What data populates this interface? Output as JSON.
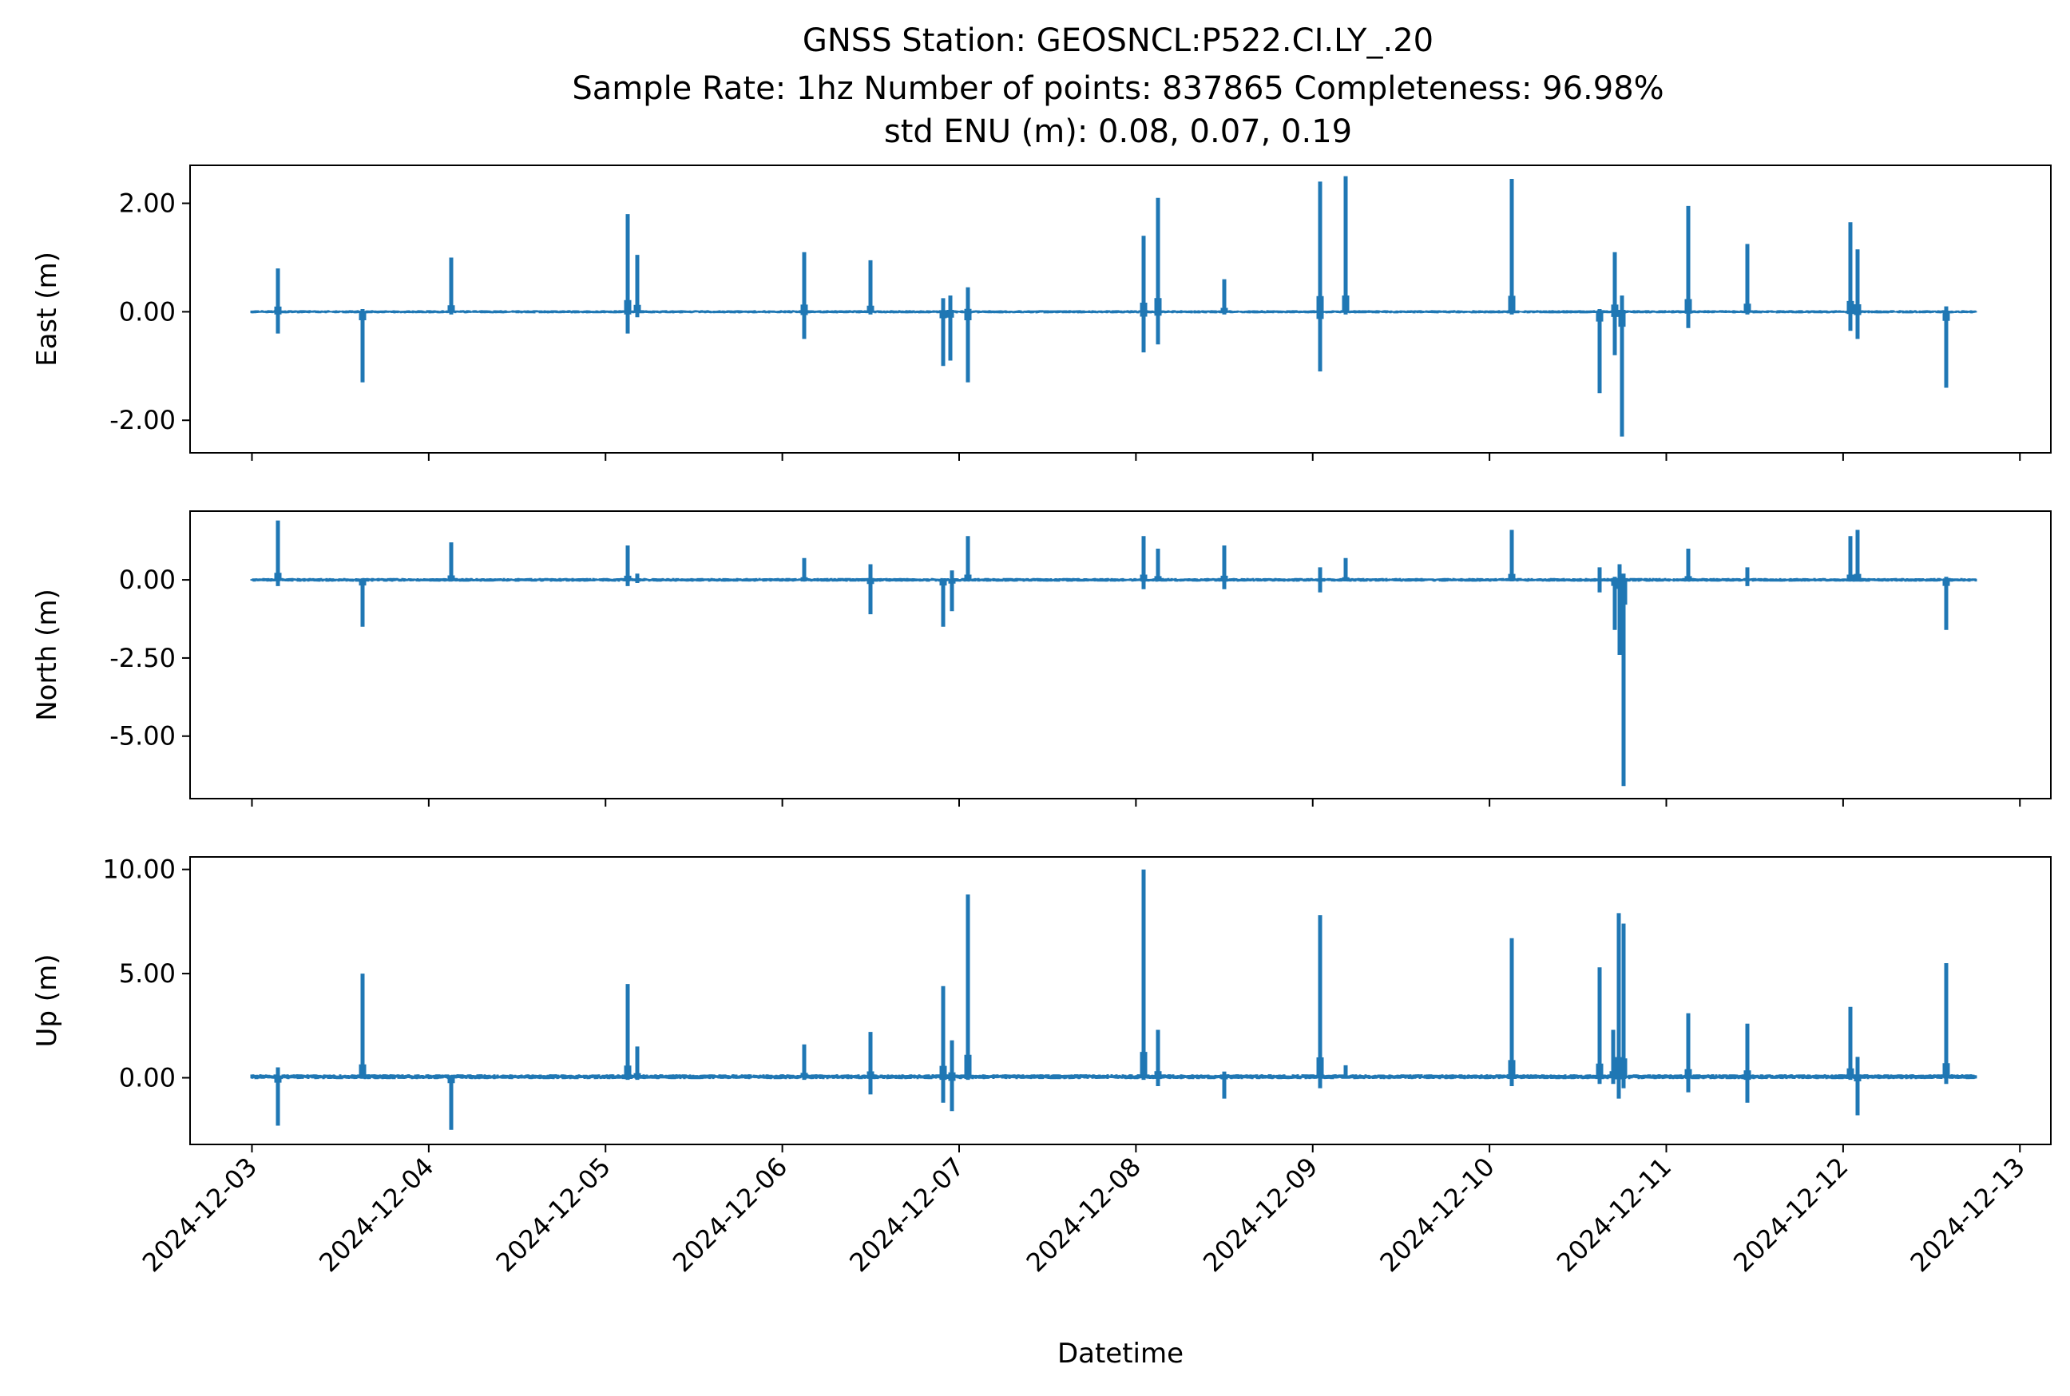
{
  "figure": {
    "title_lines": [
      "GNSS Station: GEOSNCL:P522.CI.LY_.20",
      "Sample Rate: 1hz   Number of points: 837865    Completeness:  96.98%",
      "std ENU (m):  0.08, 0.07, 0.19"
    ],
    "line_color": "#1f77b4"
  },
  "chart_data": [
    {
      "type": "line",
      "title": "",
      "ylabel": "East (m)",
      "xlabel": "",
      "xlim": [
        "2024-12-02T15:36",
        "2024-12-13T04:12"
      ],
      "ylim": [
        -2.6,
        2.7
      ],
      "yticks": [
        {
          "value": -2,
          "label": "-2.00"
        },
        {
          "value": 0,
          "label": "0.00"
        },
        {
          "value": 2,
          "label": "2.00"
        }
      ],
      "xticks": [],
      "grid": false,
      "series_range": [
        "2024-12-03T00:00",
        "2024-12-12T18:00"
      ],
      "baseline": 0,
      "noise": 0.02,
      "spikes": [
        {
          "t": "2024-12-03T03:30",
          "min": -0.4,
          "max": 0.8
        },
        {
          "t": "2024-12-03T15:00",
          "min": -1.3,
          "max": 0.05
        },
        {
          "t": "2024-12-04T03:00",
          "min": -0.05,
          "max": 1.0
        },
        {
          "t": "2024-12-05T03:00",
          "min": -0.4,
          "max": 1.8
        },
        {
          "t": "2024-12-05T04:20",
          "min": -0.1,
          "max": 1.05
        },
        {
          "t": "2024-12-06T03:00",
          "min": -0.5,
          "max": 1.1
        },
        {
          "t": "2024-12-06T12:00",
          "min": -0.05,
          "max": 0.95
        },
        {
          "t": "2024-12-06T21:50",
          "min": -1.0,
          "max": 0.25
        },
        {
          "t": "2024-12-06T22:50",
          "min": -0.9,
          "max": 0.3
        },
        {
          "t": "2024-12-07T01:10",
          "min": -1.3,
          "max": 0.45
        },
        {
          "t": "2024-12-08T01:00",
          "min": -0.75,
          "max": 1.4
        },
        {
          "t": "2024-12-08T03:00",
          "min": -0.6,
          "max": 2.1
        },
        {
          "t": "2024-12-08T12:00",
          "min": -0.05,
          "max": 0.6
        },
        {
          "t": "2024-12-09T01:00",
          "min": -1.1,
          "max": 2.4
        },
        {
          "t": "2024-12-09T04:30",
          "min": -0.05,
          "max": 2.5
        },
        {
          "t": "2024-12-10T03:00",
          "min": -0.05,
          "max": 2.45
        },
        {
          "t": "2024-12-10T15:00",
          "min": -1.5,
          "max": 0.05
        },
        {
          "t": "2024-12-10T17:00",
          "min": -0.8,
          "max": 1.1
        },
        {
          "t": "2024-12-10T18:00",
          "min": -2.3,
          "max": 0.3
        },
        {
          "t": "2024-12-11T03:00",
          "min": -0.3,
          "max": 1.95
        },
        {
          "t": "2024-12-11T11:00",
          "min": -0.05,
          "max": 1.25
        },
        {
          "t": "2024-12-12T01:00",
          "min": -0.35,
          "max": 1.65
        },
        {
          "t": "2024-12-12T02:00",
          "min": -0.5,
          "max": 1.15
        },
        {
          "t": "2024-12-12T14:00",
          "min": -1.4,
          "max": 0.1
        }
      ]
    },
    {
      "type": "line",
      "title": "",
      "ylabel": "North (m)",
      "xlabel": "",
      "xlim": [
        "2024-12-02T15:36",
        "2024-12-13T04:12"
      ],
      "ylim": [
        -7.0,
        2.2
      ],
      "yticks": [
        {
          "value": -5,
          "label": "-5.00"
        },
        {
          "value": -2.5,
          "label": "-2.50"
        },
        {
          "value": 0,
          "label": "0.00"
        }
      ],
      "xticks": [],
      "grid": false,
      "series_range": [
        "2024-12-03T00:00",
        "2024-12-12T18:00"
      ],
      "baseline": 0,
      "noise": 0.04,
      "spikes": [
        {
          "t": "2024-12-03T03:30",
          "min": -0.2,
          "max": 1.9
        },
        {
          "t": "2024-12-03T15:00",
          "min": -1.5,
          "max": 0.05
        },
        {
          "t": "2024-12-04T03:00",
          "min": -0.05,
          "max": 1.2
        },
        {
          "t": "2024-12-05T03:00",
          "min": -0.2,
          "max": 1.1
        },
        {
          "t": "2024-12-05T04:20",
          "min": -0.1,
          "max": 0.2
        },
        {
          "t": "2024-12-06T03:00",
          "min": -0.05,
          "max": 0.7
        },
        {
          "t": "2024-12-06T12:00",
          "min": -1.1,
          "max": 0.5
        },
        {
          "t": "2024-12-06T21:50",
          "min": -1.5,
          "max": 0.05
        },
        {
          "t": "2024-12-06T23:00",
          "min": -1.0,
          "max": 0.3
        },
        {
          "t": "2024-12-07T01:10",
          "min": -0.05,
          "max": 1.4
        },
        {
          "t": "2024-12-08T01:00",
          "min": -0.3,
          "max": 1.4
        },
        {
          "t": "2024-12-08T03:00",
          "min": -0.05,
          "max": 1.0
        },
        {
          "t": "2024-12-08T12:00",
          "min": -0.3,
          "max": 1.1
        },
        {
          "t": "2024-12-09T01:00",
          "min": -0.4,
          "max": 0.4
        },
        {
          "t": "2024-12-09T04:30",
          "min": -0.05,
          "max": 0.7
        },
        {
          "t": "2024-12-10T03:00",
          "min": -0.05,
          "max": 1.6
        },
        {
          "t": "2024-12-10T15:00",
          "min": -0.4,
          "max": 0.4
        },
        {
          "t": "2024-12-10T17:00",
          "min": -1.6,
          "max": 0.1
        },
        {
          "t": "2024-12-10T17:40",
          "min": -2.4,
          "max": 0.5
        },
        {
          "t": "2024-12-10T18:10",
          "min": -6.6,
          "max": 0.2
        },
        {
          "t": "2024-12-11T03:00",
          "min": -0.05,
          "max": 1.0
        },
        {
          "t": "2024-12-11T11:00",
          "min": -0.2,
          "max": 0.4
        },
        {
          "t": "2024-12-12T01:00",
          "min": -0.05,
          "max": 1.4
        },
        {
          "t": "2024-12-12T02:00",
          "min": -0.05,
          "max": 1.6
        },
        {
          "t": "2024-12-12T14:00",
          "min": -1.6,
          "max": 0.1
        }
      ]
    },
    {
      "type": "line",
      "title": "",
      "ylabel": "Up (m)",
      "xlabel": "Datetime",
      "xlim": [
        "2024-12-02T15:36",
        "2024-12-13T04:12"
      ],
      "ylim": [
        -3.2,
        10.6
      ],
      "yticks": [
        {
          "value": 0,
          "label": "0.00"
        },
        {
          "value": 5,
          "label": "5.00"
        },
        {
          "value": 10,
          "label": "10.00"
        }
      ],
      "xticks": [
        "2024-12-03",
        "2024-12-04",
        "2024-12-05",
        "2024-12-06",
        "2024-12-07",
        "2024-12-08",
        "2024-12-09",
        "2024-12-10",
        "2024-12-11",
        "2024-12-12",
        "2024-12-13"
      ],
      "grid": false,
      "series_range": [
        "2024-12-03T00:00",
        "2024-12-12T18:00"
      ],
      "baseline": 0.05,
      "noise": 0.08,
      "spikes": [
        {
          "t": "2024-12-03T03:30",
          "min": -2.3,
          "max": 0.5
        },
        {
          "t": "2024-12-03T15:00",
          "min": -0.05,
          "max": 5.0
        },
        {
          "t": "2024-12-04T03:00",
          "min": -2.5,
          "max": 0.05
        },
        {
          "t": "2024-12-05T03:00",
          "min": -0.1,
          "max": 4.5
        },
        {
          "t": "2024-12-05T04:20",
          "min": -0.1,
          "max": 1.5
        },
        {
          "t": "2024-12-06T03:00",
          "min": -0.1,
          "max": 1.6
        },
        {
          "t": "2024-12-06T12:00",
          "min": -0.8,
          "max": 2.2
        },
        {
          "t": "2024-12-06T21:50",
          "min": -1.2,
          "max": 4.4
        },
        {
          "t": "2024-12-06T23:00",
          "min": -1.6,
          "max": 1.8
        },
        {
          "t": "2024-12-07T01:10",
          "min": -0.1,
          "max": 8.8
        },
        {
          "t": "2024-12-08T01:00",
          "min": -0.1,
          "max": 10.0
        },
        {
          "t": "2024-12-08T03:00",
          "min": -0.4,
          "max": 2.3
        },
        {
          "t": "2024-12-08T12:00",
          "min": -1.0,
          "max": 0.3
        },
        {
          "t": "2024-12-09T01:00",
          "min": -0.5,
          "max": 7.8
        },
        {
          "t": "2024-12-09T04:30",
          "min": -0.05,
          "max": 0.6
        },
        {
          "t": "2024-12-10T03:00",
          "min": -0.4,
          "max": 6.7
        },
        {
          "t": "2024-12-10T15:00",
          "min": -0.3,
          "max": 5.3
        },
        {
          "t": "2024-12-10T16:50",
          "min": -0.3,
          "max": 2.3
        },
        {
          "t": "2024-12-10T17:30",
          "min": -1.0,
          "max": 7.9
        },
        {
          "t": "2024-12-10T18:10",
          "min": -0.5,
          "max": 7.4
        },
        {
          "t": "2024-12-11T03:00",
          "min": -0.7,
          "max": 3.1
        },
        {
          "t": "2024-12-11T11:00",
          "min": -1.2,
          "max": 2.6
        },
        {
          "t": "2024-12-12T01:00",
          "min": -0.1,
          "max": 3.4
        },
        {
          "t": "2024-12-12T02:00",
          "min": -1.8,
          "max": 1.0
        },
        {
          "t": "2024-12-12T14:00",
          "min": -0.3,
          "max": 5.5
        }
      ]
    }
  ]
}
